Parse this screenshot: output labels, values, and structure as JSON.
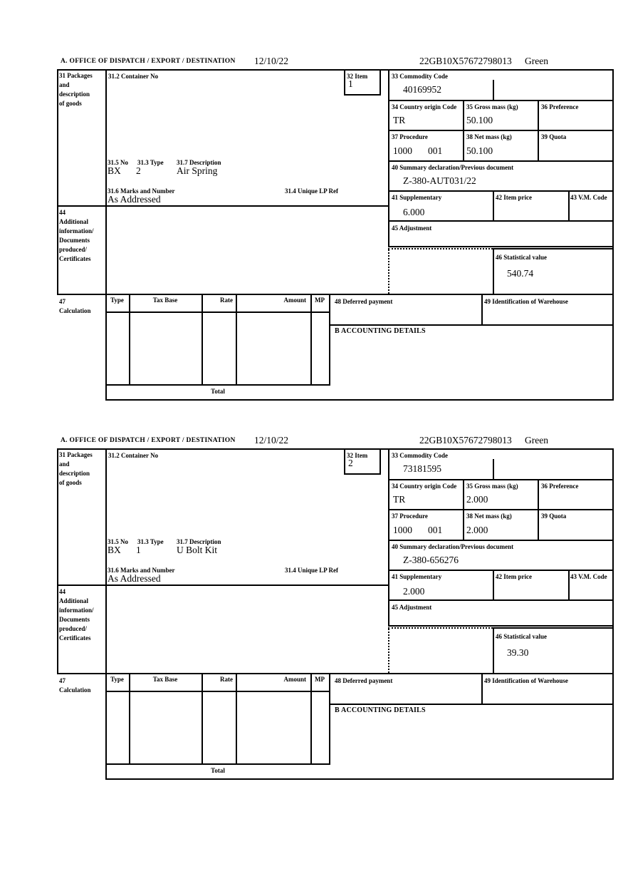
{
  "header": {
    "office_label": "A.  OFFICE OF DISPATCH / EXPORT / DESTINATION",
    "date": "12/10/22",
    "mrn": "22GB10X57672798013",
    "routing": "Green"
  },
  "labels": {
    "box31": "31 Packages\nand\ndescription\nof goods",
    "box31_2": "31.2 Container No",
    "box32": "32 Item",
    "box33": "33 Commodity Code",
    "box34": "34 Country origin Code",
    "box35": "35 Gross mass (kg)",
    "box36": "36 Preference",
    "box37": "37 Procedure",
    "box38": "38 Net mass (kg)",
    "box39": "39 Quota",
    "box40": "40 Summary declaration/Previous document",
    "box41": "41 Supplementary",
    "box42": "42 Item price",
    "box43": "43 V.M. Code",
    "box44": "44\nAdditional\ninformation/\nDocuments\nproduced/\nCertificates",
    "box45": "45 Adjustment",
    "box46": "46 Statistical value",
    "box47": "47\nCalculation",
    "box48": "48 Deferred payment",
    "box49": "49 Identification of Warehouse",
    "box31_5": "31.5 No",
    "box31_3": "31.3 Type",
    "box31_7": "31.7 Description",
    "box31_6": "31.6 Marks and Number",
    "box31_4": "31.4 Unique LP Ref",
    "accounting": "B ACCOUNTING DETAILS",
    "total": "Total",
    "calc_headers": [
      "Type",
      "Tax Base",
      "Rate",
      "Amount",
      "MP"
    ]
  },
  "items": [
    {
      "item_no": "1",
      "container_no": "",
      "commodity_code": "40169952",
      "country_origin": "TR",
      "gross_mass": "50.100",
      "preference": "",
      "procedure": "1000",
      "procedure_add": "001",
      "net_mass": "50.100",
      "quota": "",
      "summary_declaration": "Z-380-AUT031/22",
      "supplementary": "6.000",
      "item_price": "",
      "vm_code": "",
      "adjustment": "",
      "statistical_value": "540.74",
      "package_no": "BX",
      "package_type": "2",
      "description": "Air Spring",
      "marks_and_number": "As Addressed",
      "unique_lp_ref": ""
    },
    {
      "item_no": "2",
      "container_no": "",
      "commodity_code": "73181595",
      "country_origin": "TR",
      "gross_mass": "2.000",
      "preference": "",
      "procedure": "1000",
      "procedure_add": "001",
      "net_mass": "2.000",
      "quota": "",
      "summary_declaration": "Z-380-656276",
      "supplementary": "2.000",
      "item_price": "",
      "vm_code": "",
      "adjustment": "",
      "statistical_value": "39.30",
      "package_no": "BX",
      "package_type": "1",
      "description": "U Bolt Kit",
      "marks_and_number": "As Addressed",
      "unique_lp_ref": ""
    }
  ]
}
